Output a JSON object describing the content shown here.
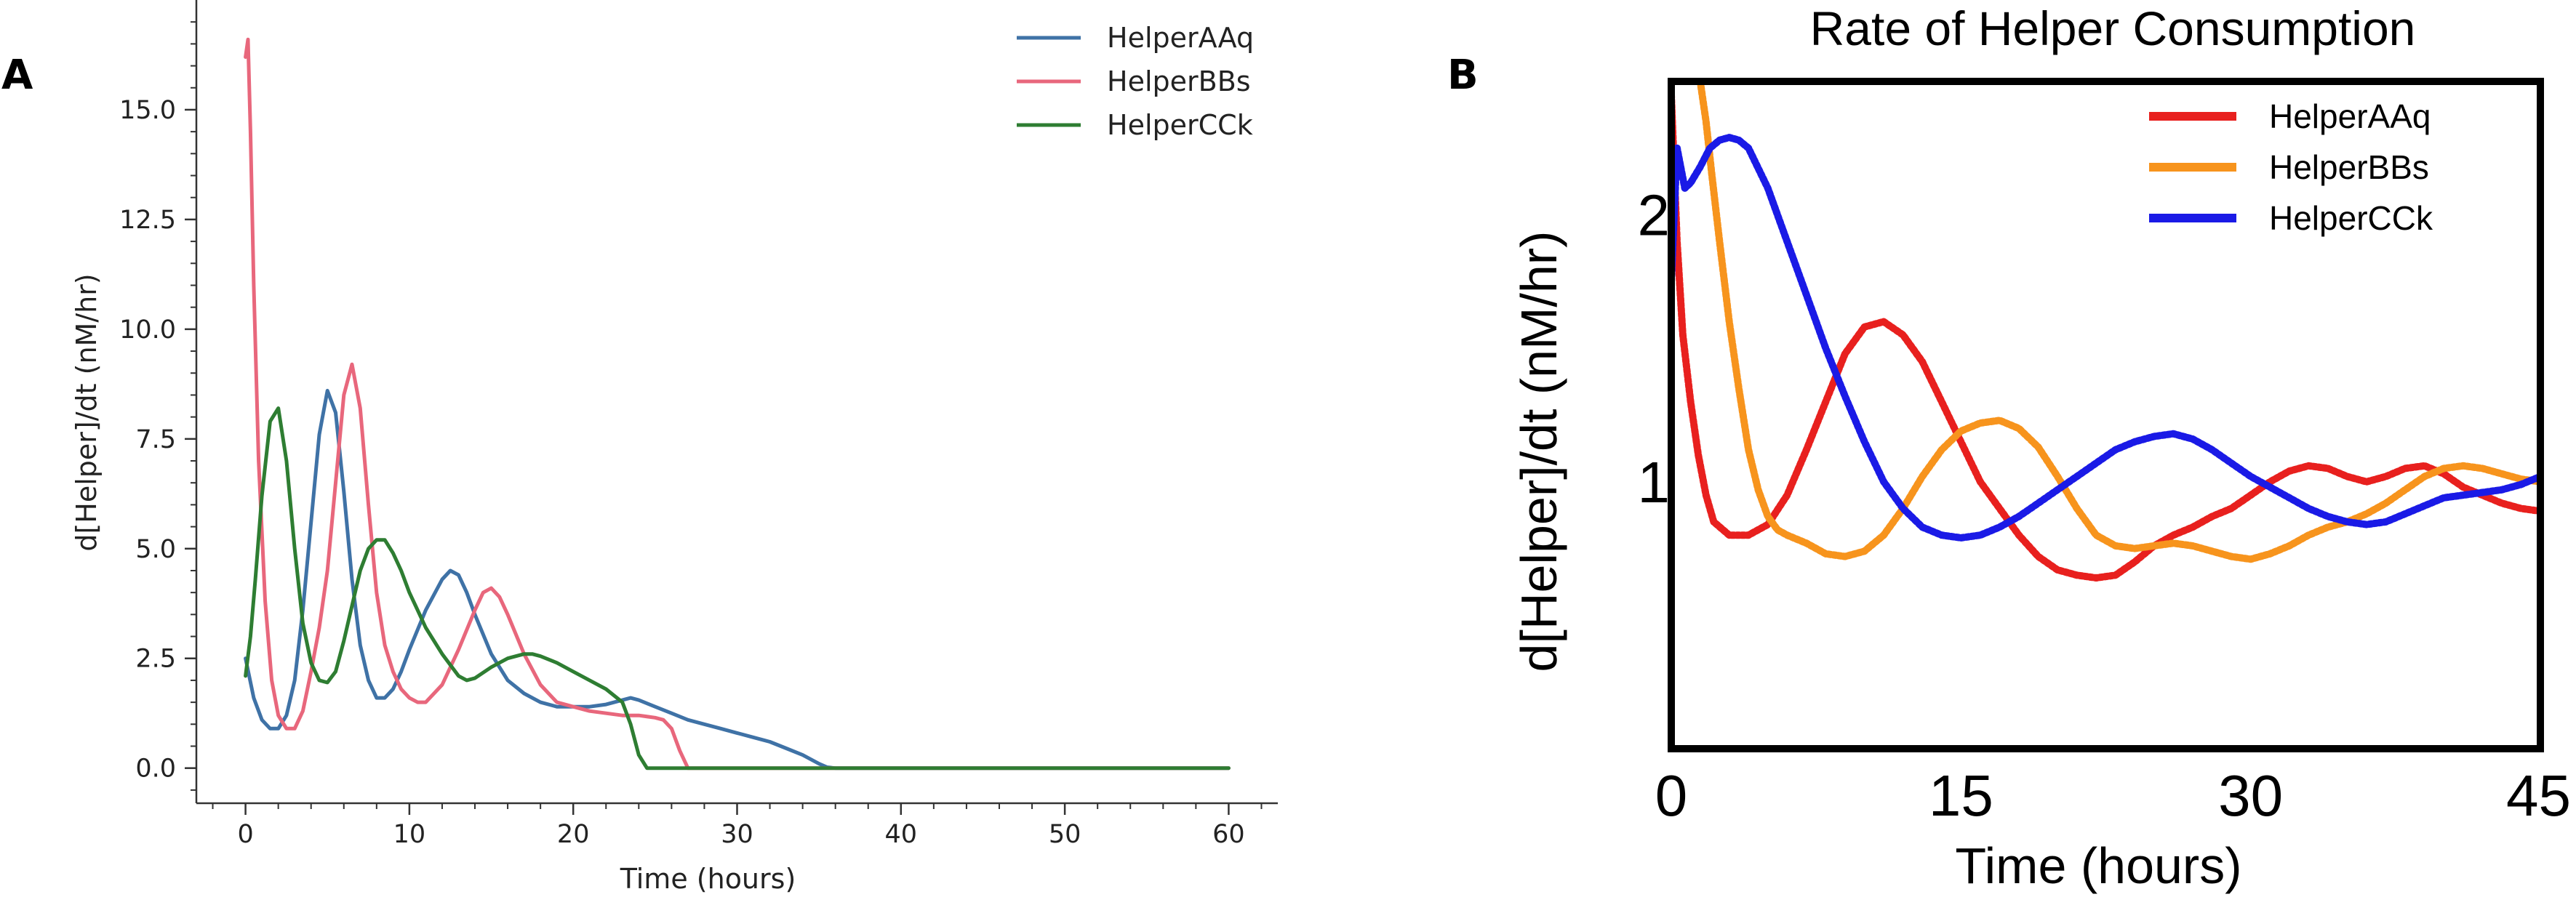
{
  "panel_a_letter": "A",
  "panel_b_letter": "B",
  "chart_data": [
    {
      "type": "line",
      "title": "",
      "xlabel": "Time (hours)",
      "ylabel": "d[Helper]/dt (nM/hr)",
      "xlim": [
        -3,
        63
      ],
      "ylim": [
        -0.8,
        17.5
      ],
      "xticks": [
        0,
        10,
        20,
        30,
        40,
        50,
        60
      ],
      "xtick_labels": [
        "0",
        "10",
        "20",
        "30",
        "40",
        "50",
        "60"
      ],
      "yticks": [
        0,
        2.5,
        5,
        7.5,
        10,
        12.5,
        15
      ],
      "ytick_labels": [
        "0.0",
        "2.5",
        "5.0",
        "7.5",
        "10.0",
        "12.5",
        "15.0"
      ],
      "legend_position": "top-right",
      "series": [
        {
          "name": "HelperAAq",
          "color": "#3f72a6",
          "x": [
            0,
            0.5,
            1,
            1.5,
            2,
            2.5,
            3,
            3.5,
            4,
            4.5,
            5,
            5.5,
            6,
            6.5,
            7,
            7.5,
            8,
            8.5,
            9,
            9.5,
            10,
            11,
            12,
            12.5,
            13,
            13.5,
            14,
            15,
            16,
            17,
            18,
            19,
            20,
            21,
            22,
            23,
            23.5,
            24,
            25,
            26,
            27,
            28,
            29,
            30,
            31,
            32,
            33,
            34,
            35,
            35.5,
            36,
            40,
            50,
            60
          ],
          "y": [
            2.5,
            1.6,
            1.1,
            0.9,
            0.9,
            1.2,
            2.0,
            3.6,
            5.6,
            7.6,
            8.6,
            8.1,
            6.3,
            4.3,
            2.8,
            2.0,
            1.6,
            1.6,
            1.8,
            2.2,
            2.7,
            3.6,
            4.3,
            4.5,
            4.4,
            4.0,
            3.5,
            2.6,
            2.0,
            1.7,
            1.5,
            1.4,
            1.4,
            1.4,
            1.45,
            1.55,
            1.6,
            1.55,
            1.4,
            1.25,
            1.1,
            1.0,
            0.9,
            0.8,
            0.7,
            0.6,
            0.45,
            0.3,
            0.1,
            0.02,
            0,
            0,
            0,
            0
          ]
        },
        {
          "name": "HelperBBs",
          "color": "#e8677c",
          "x": [
            0,
            0.15,
            0.3,
            0.5,
            0.8,
            1.2,
            1.6,
            2,
            2.5,
            3,
            3.5,
            4,
            4.5,
            5,
            5.5,
            6,
            6.5,
            7,
            7.5,
            8,
            8.5,
            9,
            9.5,
            10,
            10.5,
            11,
            12,
            13,
            14,
            14.5,
            15,
            15.5,
            16,
            17,
            18,
            19,
            20,
            21,
            22,
            23,
            24,
            25,
            25.5,
            26,
            26.5,
            27,
            30,
            40,
            50,
            60
          ],
          "y": [
            16.2,
            16.6,
            14.5,
            11.0,
            7.0,
            3.8,
            2.0,
            1.2,
            0.9,
            0.9,
            1.3,
            2.2,
            3.2,
            4.5,
            6.5,
            8.5,
            9.2,
            8.2,
            6.0,
            4.0,
            2.8,
            2.2,
            1.8,
            1.6,
            1.5,
            1.5,
            1.9,
            2.7,
            3.6,
            4.0,
            4.1,
            3.9,
            3.5,
            2.6,
            1.9,
            1.5,
            1.4,
            1.3,
            1.25,
            1.2,
            1.2,
            1.15,
            1.1,
            0.9,
            0.4,
            0,
            0,
            0,
            0,
            0
          ]
        },
        {
          "name": "HelperCCk",
          "color": "#2e7d32",
          "x": [
            0,
            0.3,
            0.6,
            1,
            1.5,
            2,
            2.5,
            3,
            3.5,
            4,
            4.5,
            5,
            5.5,
            6,
            6.5,
            7,
            7.5,
            8,
            8.5,
            9,
            9.5,
            10,
            10.5,
            11,
            12,
            13,
            13.5,
            14,
            15,
            16,
            17,
            17.5,
            18,
            19,
            20,
            21,
            22,
            23,
            23.5,
            24,
            24.5,
            25,
            30,
            40,
            50,
            60
          ],
          "y": [
            2.1,
            3.0,
            4.3,
            6.2,
            7.9,
            8.2,
            7.0,
            5.0,
            3.3,
            2.4,
            2.0,
            1.95,
            2.2,
            2.9,
            3.7,
            4.5,
            5.0,
            5.2,
            5.2,
            4.9,
            4.5,
            4.0,
            3.6,
            3.2,
            2.6,
            2.1,
            2.0,
            2.05,
            2.3,
            2.5,
            2.6,
            2.6,
            2.55,
            2.4,
            2.2,
            2.0,
            1.8,
            1.5,
            1.0,
            0.3,
            0,
            0,
            0,
            0,
            0,
            0
          ]
        }
      ]
    },
    {
      "type": "line",
      "title": "Rate of Helper Consumption",
      "xlabel": "Time (hours)",
      "ylabel": "d[Helper]/dt (nM/hr)",
      "xlim": [
        0,
        45
      ],
      "ylim": [
        0,
        2.5
      ],
      "xticks": [
        0,
        15,
        30,
        45
      ],
      "xtick_labels": [
        "0",
        "15",
        "30",
        "45"
      ],
      "yticks": [
        1,
        2
      ],
      "ytick_labels": [
        "1",
        "2"
      ],
      "legend_position": "top-right",
      "series": [
        {
          "name": "HelperAAq",
          "color": "#e8201e",
          "x": [
            0,
            0.3,
            0.6,
            1,
            1.4,
            1.8,
            2.2,
            3,
            4,
            5,
            6,
            7,
            8,
            9,
            10,
            11,
            12,
            13,
            14,
            15,
            16,
            17,
            18,
            19,
            20,
            21,
            22,
            23,
            24,
            25,
            26,
            27,
            28,
            29,
            30,
            31,
            32,
            33,
            34,
            35,
            36,
            37,
            38,
            39,
            40,
            41,
            42,
            43,
            44,
            45
          ],
          "y": [
            2.45,
            1.9,
            1.55,
            1.3,
            1.1,
            0.95,
            0.85,
            0.8,
            0.8,
            0.84,
            0.95,
            1.12,
            1.3,
            1.48,
            1.58,
            1.6,
            1.55,
            1.45,
            1.3,
            1.15,
            1.0,
            0.9,
            0.8,
            0.72,
            0.67,
            0.65,
            0.64,
            0.65,
            0.7,
            0.76,
            0.8,
            0.83,
            0.87,
            0.9,
            0.95,
            1.0,
            1.04,
            1.06,
            1.05,
            1.02,
            1.0,
            1.02,
            1.05,
            1.06,
            1.03,
            0.98,
            0.95,
            0.92,
            0.9,
            0.89
          ]
        },
        {
          "name": "HelperBBs",
          "color": "#f7941d",
          "x": [
            1.5,
            1.8,
            2.1,
            2.5,
            3,
            3.5,
            4,
            4.5,
            5,
            5.5,
            6,
            7,
            8,
            9,
            10,
            11,
            12,
            13,
            14,
            15,
            16,
            17,
            18,
            19,
            20,
            21,
            22,
            23,
            24,
            25,
            26,
            27,
            28,
            29,
            30,
            31,
            32,
            33,
            34,
            35,
            36,
            37,
            38,
            39,
            40,
            41,
            42,
            43,
            44,
            45
          ],
          "y": [
            2.5,
            2.35,
            2.15,
            1.9,
            1.6,
            1.35,
            1.12,
            0.97,
            0.87,
            0.82,
            0.8,
            0.77,
            0.73,
            0.72,
            0.74,
            0.8,
            0.9,
            1.02,
            1.12,
            1.19,
            1.22,
            1.23,
            1.2,
            1.13,
            1.02,
            0.9,
            0.8,
            0.76,
            0.75,
            0.76,
            0.77,
            0.76,
            0.74,
            0.72,
            0.71,
            0.73,
            0.76,
            0.8,
            0.83,
            0.85,
            0.88,
            0.92,
            0.97,
            1.02,
            1.05,
            1.06,
            1.05,
            1.03,
            1.01,
            1.0
          ]
        },
        {
          "name": "HelperCCk",
          "color": "#1a1ae6",
          "x": [
            0,
            0.3,
            0.7,
            1,
            1.5,
            2,
            2.5,
            3,
            3.5,
            4,
            5,
            6,
            7,
            8,
            9,
            10,
            11,
            12,
            13,
            14,
            15,
            16,
            17,
            18,
            19,
            20,
            21,
            22,
            23,
            24,
            25,
            26,
            27,
            28,
            29,
            30,
            31,
            32,
            33,
            34,
            35,
            36,
            37,
            38,
            39,
            40,
            41,
            42,
            43,
            44,
            45
          ],
          "y": [
            1.75,
            2.25,
            2.1,
            2.12,
            2.18,
            2.25,
            2.28,
            2.29,
            2.28,
            2.25,
            2.1,
            1.9,
            1.7,
            1.5,
            1.32,
            1.15,
            1.0,
            0.9,
            0.83,
            0.8,
            0.79,
            0.8,
            0.83,
            0.87,
            0.92,
            0.97,
            1.02,
            1.07,
            1.12,
            1.15,
            1.17,
            1.18,
            1.16,
            1.12,
            1.07,
            1.02,
            0.98,
            0.94,
            0.9,
            0.87,
            0.85,
            0.84,
            0.85,
            0.88,
            0.91,
            0.94,
            0.95,
            0.96,
            0.97,
            0.99,
            1.02
          ]
        }
      ]
    }
  ]
}
